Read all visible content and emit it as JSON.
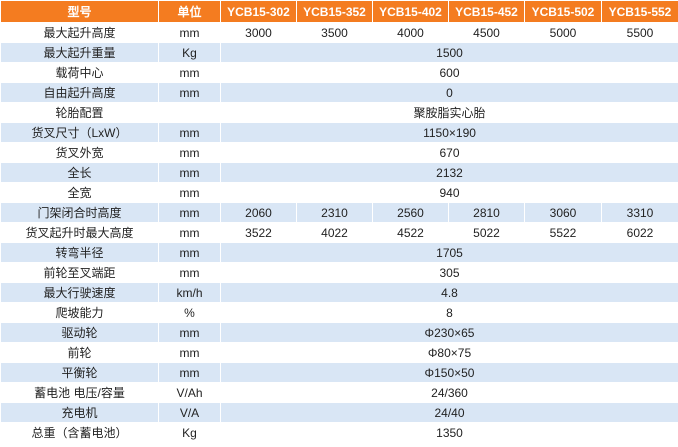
{
  "table": {
    "header": [
      "型号",
      "单位",
      "YCB15-302",
      "YCB15-352",
      "YCB15-402",
      "YCB15-452",
      "YCB15-502",
      "YCB15-552"
    ],
    "rows": [
      {
        "label": "最大起升高度",
        "unit": "mm",
        "values": [
          "3000",
          "3500",
          "4000",
          "4500",
          "5000",
          "5500"
        ]
      },
      {
        "label": "最大起升重量",
        "unit": "Kg",
        "values": [
          "1500"
        ]
      },
      {
        "label": "载荷中心",
        "unit": "mm",
        "values": [
          "600"
        ]
      },
      {
        "label": "自由起升高度",
        "unit": "mm",
        "values": [
          "0"
        ]
      },
      {
        "label": "轮胎配置",
        "values": [
          "聚胺脂实心胎"
        ]
      },
      {
        "label": "货叉尺寸（LxW）",
        "unit": "mm",
        "values": [
          "1150×190"
        ]
      },
      {
        "label": "货叉外宽",
        "unit": "mm",
        "values": [
          "670"
        ]
      },
      {
        "label": "全长",
        "unit": "mm",
        "values": [
          "2132"
        ]
      },
      {
        "label": "全宽",
        "unit": "mm",
        "values": [
          "940"
        ]
      },
      {
        "label": "门架闭合时高度",
        "unit": "mm",
        "values": [
          "2060",
          "2310",
          "2560",
          "2810",
          "3060",
          "3310"
        ]
      },
      {
        "label": "货叉起升时最大高度",
        "unit": "mm",
        "values": [
          "3522",
          "4022",
          "4522",
          "5022",
          "5522",
          "6022"
        ]
      },
      {
        "label": "转弯半径",
        "unit": "mm",
        "values": [
          "1705"
        ]
      },
      {
        "label": "前轮至叉端距",
        "unit": "mm",
        "values": [
          "305"
        ]
      },
      {
        "label": "最大行驶速度",
        "unit": "km/h",
        "values": [
          "4.8"
        ]
      },
      {
        "label": "爬坡能力",
        "unit": "%",
        "values": [
          "8"
        ]
      },
      {
        "label": "驱动轮",
        "unit": "mm",
        "values": [
          "Φ230×65"
        ]
      },
      {
        "label": "前轮",
        "unit": "mm",
        "values": [
          "Φ80×75"
        ]
      },
      {
        "label": "平衡轮",
        "unit": "mm",
        "values": [
          "Φ150×50"
        ]
      },
      {
        "label": "蓄电池 电压/容量",
        "unit": "V/Ah",
        "values": [
          "24/360"
        ]
      },
      {
        "label": "充电机",
        "unit": "V/A",
        "values": [
          "24/40"
        ]
      },
      {
        "label": "总重（含蓄电池）",
        "unit": "Kg",
        "values": [
          "1350"
        ]
      }
    ]
  }
}
